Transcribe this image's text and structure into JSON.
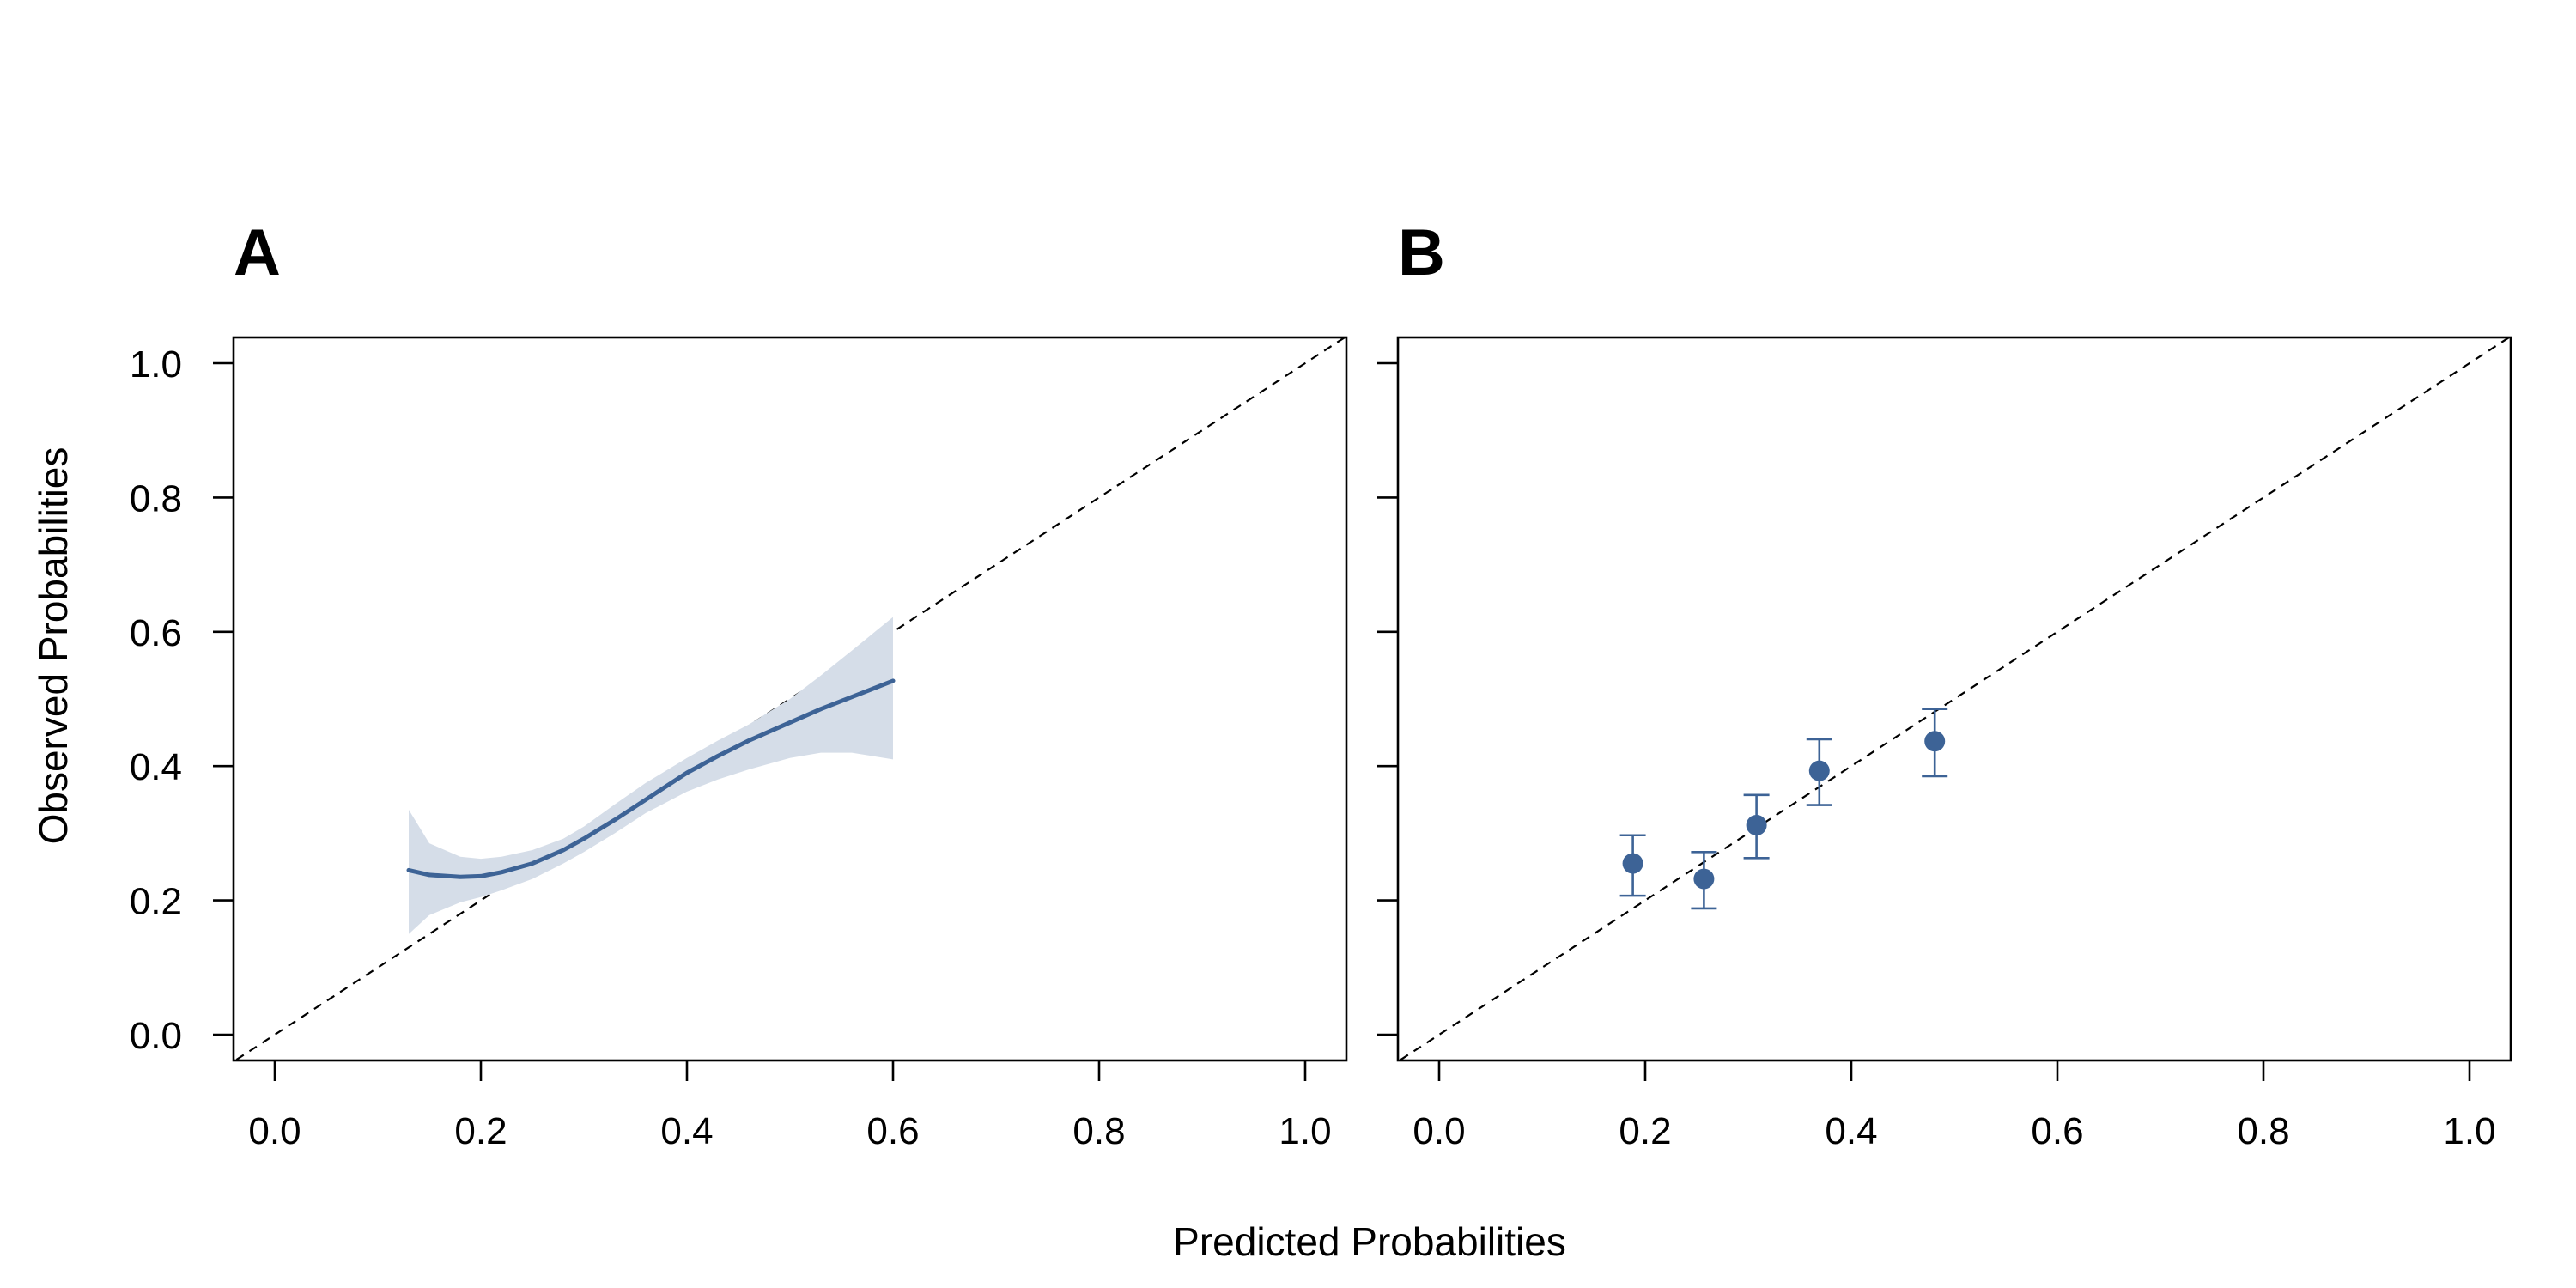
{
  "chart_data": [
    {
      "panel": "A",
      "type": "line",
      "panel_label": "A",
      "xlabel": "Predicted Probabilities",
      "ylabel": "Observed Probabilities",
      "xlim": [
        0.0,
        1.0
      ],
      "ylim": [
        0.0,
        1.0
      ],
      "x_ticks": [
        "0.0",
        "0.2",
        "0.4",
        "0.6",
        "0.8",
        "1.0"
      ],
      "y_ticks": [
        "0.0",
        "0.2",
        "0.4",
        "0.6",
        "0.8",
        "1.0"
      ],
      "grid": false,
      "reference_line": {
        "name": "ideal",
        "x": [
          0.0,
          1.0
        ],
        "y": [
          0.0,
          1.0
        ],
        "style": "dashed"
      },
      "series": [
        {
          "name": "calibration curve",
          "color": "#3d6396",
          "x": [
            0.13,
            0.15,
            0.18,
            0.2,
            0.22,
            0.25,
            0.28,
            0.3,
            0.33,
            0.36,
            0.4,
            0.43,
            0.46,
            0.5,
            0.53,
            0.56,
            0.6
          ],
          "y": [
            0.245,
            0.238,
            0.235,
            0.236,
            0.242,
            0.255,
            0.275,
            0.292,
            0.32,
            0.35,
            0.39,
            0.415,
            0.438,
            0.465,
            0.485,
            0.503,
            0.527
          ],
          "ci_lower": [
            0.15,
            0.178,
            0.197,
            0.205,
            0.215,
            0.232,
            0.255,
            0.272,
            0.3,
            0.33,
            0.362,
            0.38,
            0.395,
            0.412,
            0.42,
            0.42,
            0.41
          ],
          "ci_upper": [
            0.335,
            0.285,
            0.265,
            0.262,
            0.265,
            0.275,
            0.292,
            0.31,
            0.343,
            0.375,
            0.412,
            0.438,
            0.462,
            0.5,
            0.535,
            0.572,
            0.622
          ]
        }
      ],
      "ci_color": "#d5dde8"
    },
    {
      "panel": "B",
      "type": "scatter",
      "panel_label": "B",
      "xlabel": "Predicted Probabilities",
      "xlim": [
        0.0,
        1.0
      ],
      "ylim": [
        0.0,
        1.0
      ],
      "x_ticks": [
        "0.0",
        "0.2",
        "0.4",
        "0.6",
        "0.8",
        "1.0"
      ],
      "grid": false,
      "reference_line": {
        "name": "ideal",
        "x": [
          0.0,
          1.0
        ],
        "y": [
          0.0,
          1.0
        ],
        "style": "dashed"
      },
      "series": [
        {
          "name": "grouped observations",
          "color": "#3d6396",
          "points": [
            {
              "x": 0.188,
              "y": 0.255,
              "lower": 0.207,
              "upper": 0.297
            },
            {
              "x": 0.257,
              "y": 0.232,
              "lower": 0.188,
              "upper": 0.272
            },
            {
              "x": 0.308,
              "y": 0.312,
              "lower": 0.263,
              "upper": 0.357
            },
            {
              "x": 0.369,
              "y": 0.393,
              "lower": 0.342,
              "upper": 0.44
            },
            {
              "x": 0.481,
              "y": 0.437,
              "lower": 0.385,
              "upper": 0.485
            }
          ]
        }
      ]
    }
  ],
  "figure": {
    "shared_xlabel": "Predicted Probabilities",
    "shared_ylabel": "Observed Probabilities"
  }
}
